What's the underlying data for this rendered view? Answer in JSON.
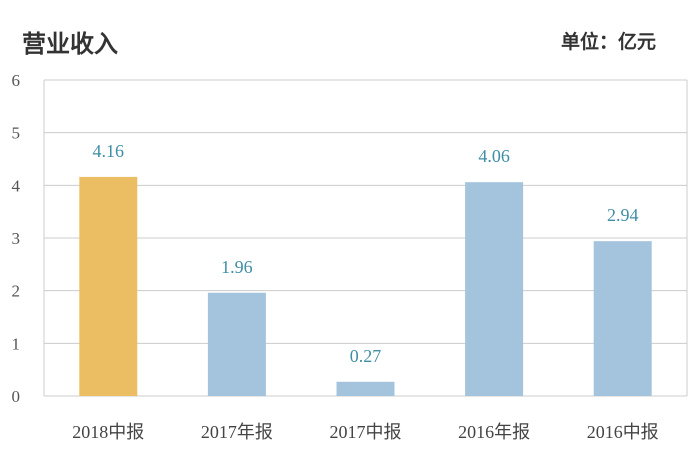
{
  "chart_data": {
    "type": "bar",
    "title": "营业收入",
    "unit_label": "单位：亿元",
    "categories": [
      "2018中报",
      "2017年报",
      "2017中报",
      "2016年报",
      "2016中报"
    ],
    "values": [
      4.16,
      1.96,
      0.27,
      4.06,
      2.94
    ],
    "data_labels": [
      "4.16",
      "1.96",
      "0.27",
      "4.06",
      "2.94"
    ],
    "ylim": [
      0,
      6
    ],
    "yticks": [
      0,
      1,
      2,
      3,
      4,
      5,
      6
    ],
    "grid": true,
    "colors": {
      "highlight": "#ecbe63",
      "default": "#a4c4dd",
      "label": "#3f8ea6",
      "grid": "#cccccc"
    },
    "highlight_index": 0
  }
}
